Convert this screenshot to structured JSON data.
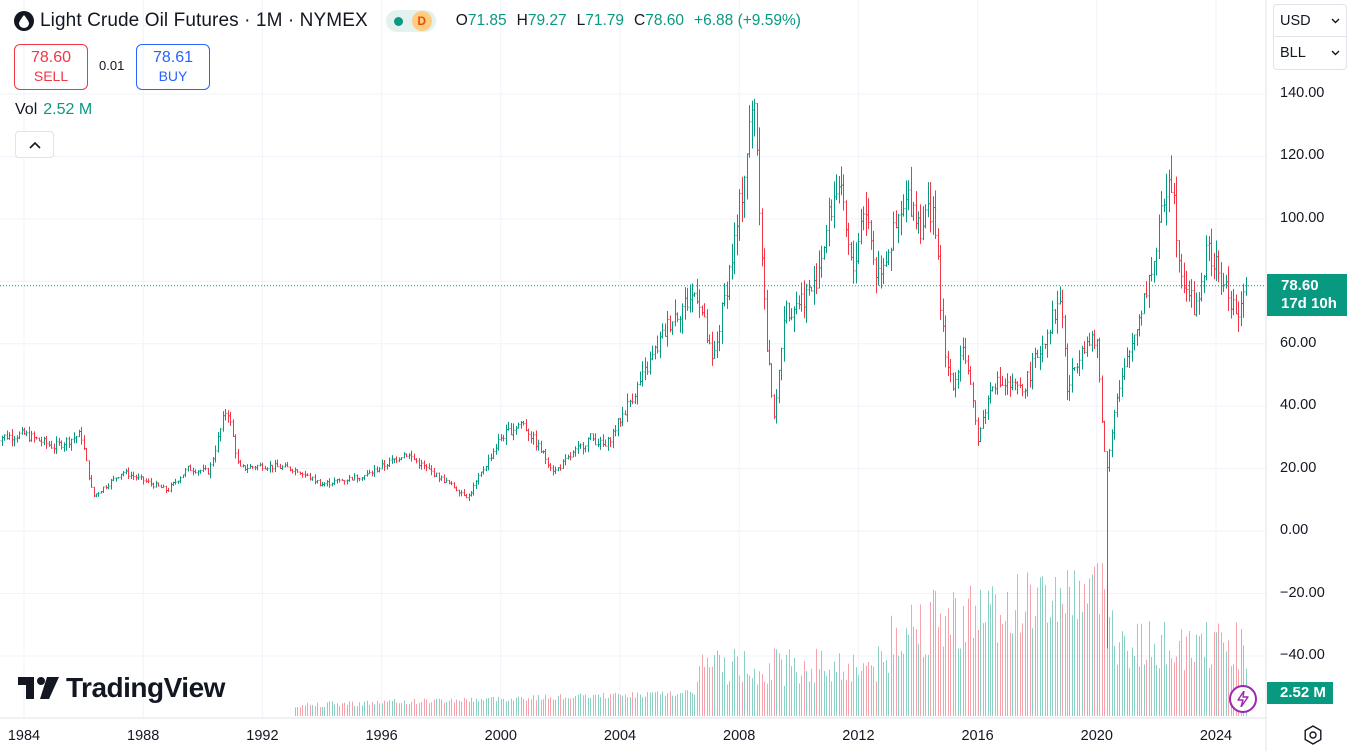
{
  "header": {
    "symbol_title": "Light Crude Oil Futures · 1M · NYMEX",
    "delay_badge": "D",
    "ohlc": {
      "open_key": "O",
      "open": "71.85",
      "high_key": "H",
      "high": "79.27",
      "low_key": "L",
      "low": "71.79",
      "close_key": "C",
      "close": "78.60",
      "change": "+6.88 (+9.59%)"
    }
  },
  "trade": {
    "sell_price": "78.60",
    "sell_label": "SELL",
    "spread": "0.01",
    "buy_price": "78.61",
    "buy_label": "BUY"
  },
  "volume_legend": {
    "label": "Vol",
    "value": "2.52 M"
  },
  "brand": {
    "name": "TradingView"
  },
  "selectors": {
    "currency": "USD",
    "unit": "BLL"
  },
  "price_tag": {
    "price": "78.60",
    "countdown": "17d 10h"
  },
  "volume_tag": "2.52 M",
  "colors": {
    "up": "#089981",
    "down": "#f23645",
    "up_vol": "#8ccfc3",
    "down_vol": "#f6a3ab"
  },
  "chart_data": {
    "type": "ohlc",
    "interval": "1M",
    "y_axis": {
      "ticks": [
        "140.00",
        "120.00",
        "100.00",
        "80.00",
        "60.00",
        "40.00",
        "20.00",
        "0.00",
        "−20.00",
        "−40.00"
      ],
      "range": [
        -45,
        152
      ]
    },
    "x_axis": {
      "ticks": [
        "1984",
        "1988",
        "1992",
        "1996",
        "2000",
        "2004",
        "2008",
        "2012",
        "2016",
        "2020",
        "2024"
      ],
      "range": [
        1983.0,
        2025.6
      ]
    },
    "last_price": 78.6,
    "price_anchors": [
      [
        1983.0,
        30
      ],
      [
        1984.0,
        31
      ],
      [
        1985.0,
        27
      ],
      [
        1985.9,
        31
      ],
      [
        1986.3,
        11
      ],
      [
        1987.3,
        19
      ],
      [
        1988.8,
        13
      ],
      [
        1989.5,
        20
      ],
      [
        1990.2,
        19
      ],
      [
        1990.8,
        40
      ],
      [
        1991.2,
        20
      ],
      [
        1992.0,
        21
      ],
      [
        1993.0,
        20
      ],
      [
        1994.0,
        15
      ],
      [
        1995.5,
        18
      ],
      [
        1996.8,
        25
      ],
      [
        1997.5,
        20
      ],
      [
        1998.9,
        11
      ],
      [
        2000.0,
        30
      ],
      [
        2000.7,
        35
      ],
      [
        2001.8,
        19
      ],
      [
        2003.0,
        30
      ],
      [
        2003.5,
        27
      ],
      [
        2004.8,
        50
      ],
      [
        2005.7,
        68
      ],
      [
        2006.6,
        77
      ],
      [
        2007.1,
        53
      ],
      [
        2007.9,
        96
      ],
      [
        2008.5,
        140
      ],
      [
        2008.9,
        60
      ],
      [
        2009.2,
        35
      ],
      [
        2009.5,
        70
      ],
      [
        2010.5,
        78
      ],
      [
        2011.3,
        113
      ],
      [
        2011.8,
        82
      ],
      [
        2012.2,
        106
      ],
      [
        2012.6,
        82
      ],
      [
        2013.2,
        95
      ],
      [
        2013.7,
        107
      ],
      [
        2014.1,
        98
      ],
      [
        2014.5,
        105
      ],
      [
        2014.9,
        55
      ],
      [
        2015.2,
        47
      ],
      [
        2015.5,
        60
      ],
      [
        2016.0,
        30
      ],
      [
        2016.5,
        48
      ],
      [
        2017.5,
        45
      ],
      [
        2018.8,
        75
      ],
      [
        2019.0,
        45
      ],
      [
        2019.5,
        60
      ],
      [
        2020.0,
        60
      ],
      [
        2020.3,
        18
      ],
      [
        2020.6,
        40
      ],
      [
        2021.5,
        72
      ],
      [
        2022.0,
        90
      ],
      [
        2022.45,
        118
      ],
      [
        2022.8,
        85
      ],
      [
        2023.3,
        70
      ],
      [
        2023.7,
        90
      ],
      [
        2024.2,
        80
      ],
      [
        2024.8,
        68
      ],
      [
        2025.0,
        78.6
      ]
    ],
    "volume_note": "volume bars shown at bottom, scaled relative (latest 2.52 M)"
  }
}
